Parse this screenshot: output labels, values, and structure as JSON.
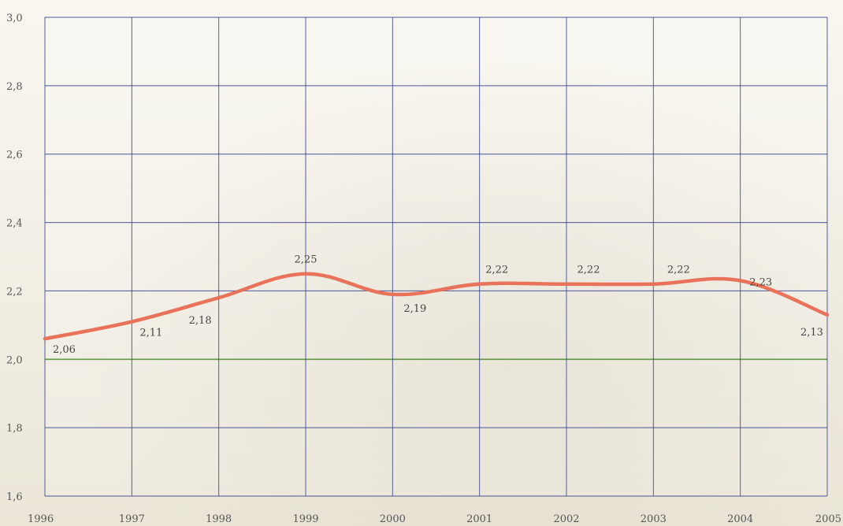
{
  "chart_data": {
    "type": "line",
    "title": "",
    "xlabel": "",
    "ylabel": "",
    "x": [
      "1996",
      "1997",
      "1998",
      "1999",
      "2000",
      "2001",
      "2002",
      "2003",
      "2004",
      "2005"
    ],
    "y_tick_labels": [
      "1,6",
      "1,8",
      "2,0",
      "2,2",
      "2,4",
      "2,6",
      "2,8",
      "3,0"
    ],
    "ylim": [
      1.6,
      3.0
    ],
    "grid": true,
    "legend": "none",
    "series": [
      {
        "values": [
          2.06,
          2.11,
          2.18,
          2.25,
          2.19,
          2.22,
          2.22,
          2.22,
          2.23,
          2.13
        ],
        "labels": [
          "2,06",
          "2,11",
          "2,18",
          "2,25",
          "2,19",
          "2,22",
          "2,22",
          "2,22",
          "2,23",
          "2,13"
        ],
        "color": "#e8735a"
      }
    ],
    "grid_color": "#2f3a8a",
    "zero_line_color": "#4a8a2a"
  }
}
